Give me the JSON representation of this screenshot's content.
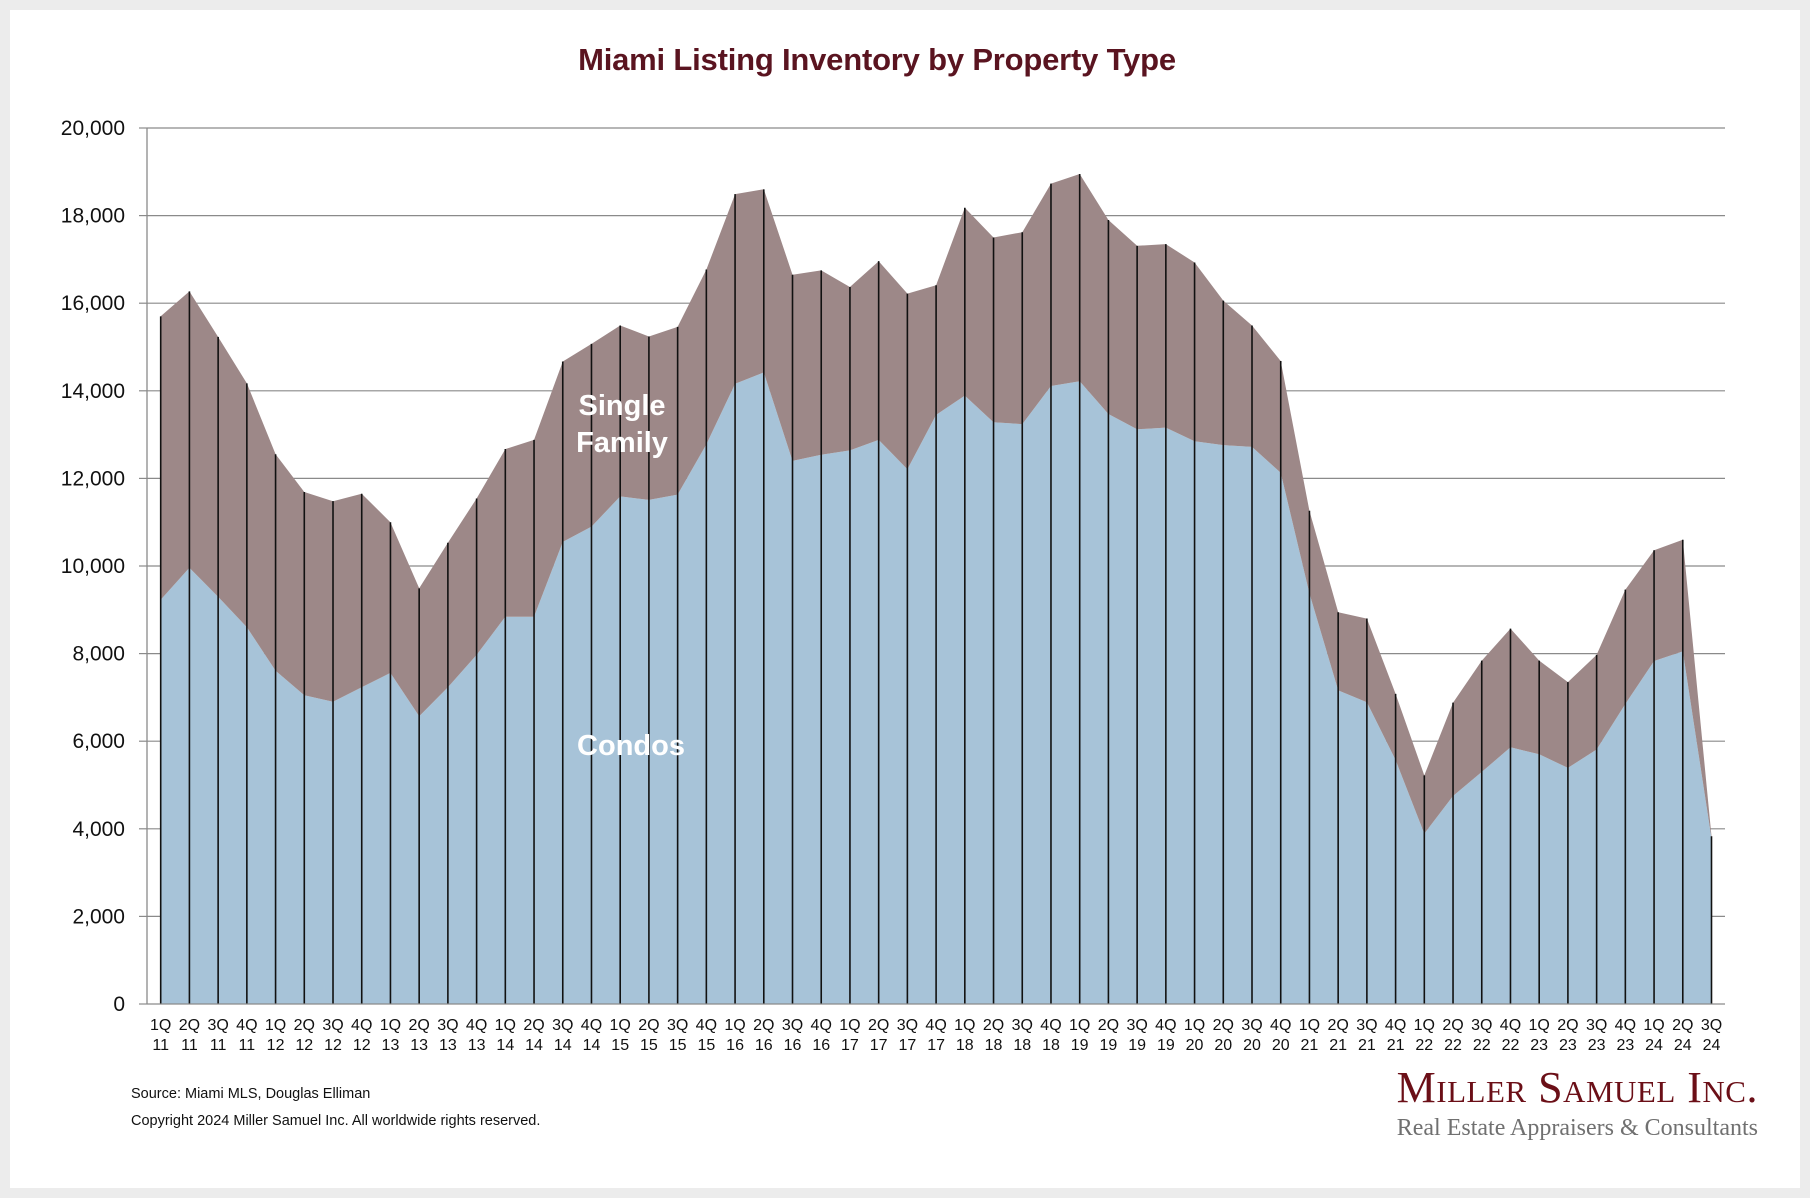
{
  "chart_data": {
    "type": "area",
    "stacked": true,
    "title": "Miami Listing Inventory by Property Type",
    "xlabel": "",
    "ylabel": "",
    "ylim": [
      0,
      20000
    ],
    "yticks": [
      "0",
      "2,000",
      "4,000",
      "6,000",
      "8,000",
      "10,000",
      "12,000",
      "14,000",
      "16,000",
      "18,000",
      "20,000"
    ],
    "ytick_values": [
      0,
      2000,
      4000,
      6000,
      8000,
      10000,
      12000,
      14000,
      16000,
      18000,
      20000
    ],
    "grid": true,
    "categories": [
      [
        "1Q",
        "11"
      ],
      [
        "2Q",
        "11"
      ],
      [
        "3Q",
        "11"
      ],
      [
        "4Q",
        "11"
      ],
      [
        "1Q",
        "12"
      ],
      [
        "2Q",
        "12"
      ],
      [
        "3Q",
        "12"
      ],
      [
        "4Q",
        "12"
      ],
      [
        "1Q",
        "13"
      ],
      [
        "2Q",
        "13"
      ],
      [
        "3Q",
        "13"
      ],
      [
        "4Q",
        "13"
      ],
      [
        "1Q",
        "14"
      ],
      [
        "2Q",
        "14"
      ],
      [
        "3Q",
        "14"
      ],
      [
        "4Q",
        "14"
      ],
      [
        "1Q",
        "15"
      ],
      [
        "2Q",
        "15"
      ],
      [
        "3Q",
        "15"
      ],
      [
        "4Q",
        "15"
      ],
      [
        "1Q",
        "16"
      ],
      [
        "2Q",
        "16"
      ],
      [
        "3Q",
        "16"
      ],
      [
        "4Q",
        "16"
      ],
      [
        "1Q",
        "17"
      ],
      [
        "2Q",
        "17"
      ],
      [
        "3Q",
        "17"
      ],
      [
        "4Q",
        "17"
      ],
      [
        "1Q",
        "18"
      ],
      [
        "2Q",
        "18"
      ],
      [
        "3Q",
        "18"
      ],
      [
        "4Q",
        "18"
      ],
      [
        "1Q",
        "19"
      ],
      [
        "2Q",
        "19"
      ],
      [
        "3Q",
        "19"
      ],
      [
        "4Q",
        "19"
      ],
      [
        "1Q",
        "20"
      ],
      [
        "2Q",
        "20"
      ],
      [
        "3Q",
        "20"
      ],
      [
        "4Q",
        "20"
      ],
      [
        "1Q",
        "21"
      ],
      [
        "2Q",
        "21"
      ],
      [
        "3Q",
        "21"
      ],
      [
        "4Q",
        "21"
      ],
      [
        "1Q",
        "22"
      ],
      [
        "2Q",
        "22"
      ],
      [
        "3Q",
        "22"
      ],
      [
        "4Q",
        "22"
      ],
      [
        "1Q",
        "23"
      ],
      [
        "2Q",
        "23"
      ],
      [
        "3Q",
        "23"
      ],
      [
        "4Q",
        "23"
      ],
      [
        "1Q",
        "24"
      ],
      [
        "2Q",
        "24"
      ],
      [
        "3Q",
        "24"
      ]
    ],
    "series": [
      {
        "name": "Condos",
        "color": "#a7c3d8",
        "values": [
          9230,
          9960,
          9300,
          8600,
          7610,
          7050,
          6900,
          7230,
          7560,
          6570,
          7230,
          7970,
          8840,
          8840,
          10550,
          10900,
          11590,
          11510,
          11630,
          12780,
          14160,
          14420,
          12400,
          12540,
          12640,
          12880,
          12210,
          13450,
          13890,
          13280,
          13240,
          14110,
          14220,
          13470,
          13120,
          13160,
          12850,
          12760,
          12720,
          12130,
          9380,
          7160,
          6890,
          5570,
          3890,
          4750,
          5300,
          5860,
          5700,
          5390,
          5810,
          6850,
          7830,
          8050,
          3780
        ]
      },
      {
        "name": "Single Family",
        "color": "#9d8888",
        "values": [
          6470,
          6310,
          5930,
          5570,
          4940,
          4640,
          4580,
          4420,
          3440,
          2920,
          3300,
          3570,
          3830,
          4040,
          4120,
          4170,
          3900,
          3730,
          3830,
          3990,
          4330,
          4180,
          4250,
          4210,
          3730,
          4080,
          4010,
          2960,
          4290,
          4220,
          4380,
          4620,
          4730,
          4430,
          4190,
          4190,
          4080,
          3300,
          2770,
          2550,
          1880,
          1785,
          1910,
          1510,
          1330,
          2130,
          2540,
          2710,
          2140,
          1960,
          2160,
          2610,
          2530,
          2550,
          50
        ]
      }
    ],
    "annotations": [
      {
        "text_lines": [
          "Single",
          "Family"
        ],
        "series": "Single Family"
      },
      {
        "text_lines": [
          "Condos"
        ],
        "series": "Condos"
      }
    ]
  },
  "footer": {
    "source": "Source: Miami MLS, Douglas Elliman",
    "copyright": "Copyright 2024 Miller Samuel Inc.  All worldwide rights reserved."
  },
  "logo": {
    "name": "Miller Samuel Inc.",
    "tagline": "Real Estate Appraisers & Consultants"
  }
}
